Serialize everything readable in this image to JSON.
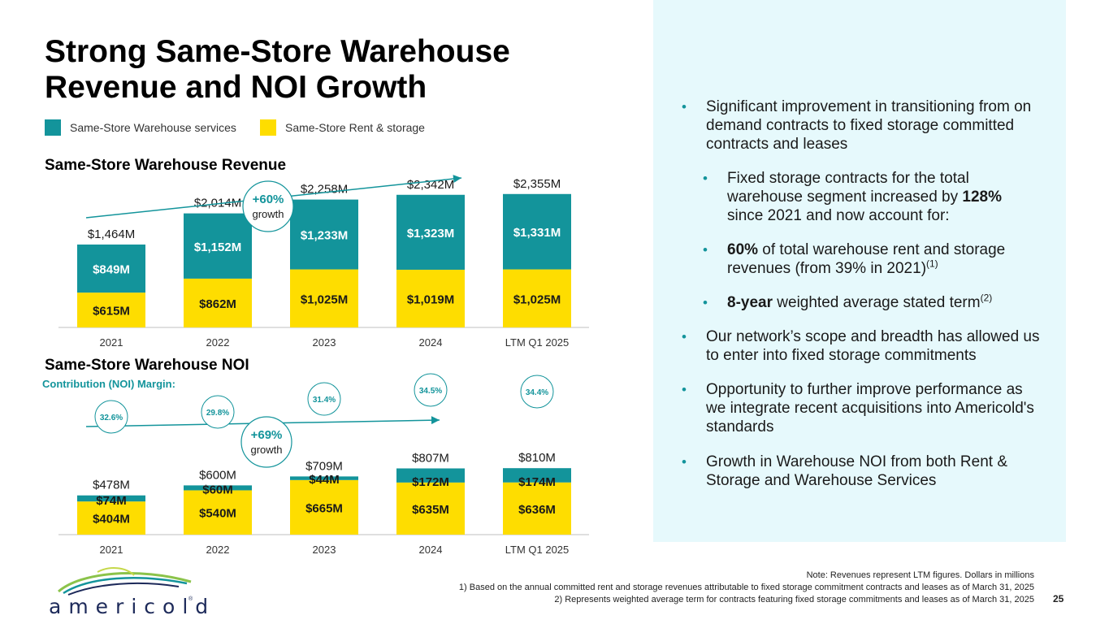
{
  "title": {
    "line1": "Strong Same-Store Warehouse",
    "line2": "Revenue and NOI Growth"
  },
  "legend": {
    "services": "Same-Store Warehouse services",
    "rent": "Same-Store Rent & storage"
  },
  "colors": {
    "teal": "#13949b",
    "yellow": "#fedd00",
    "panel": "#e6f9fc"
  },
  "revenue_title": "Same-Store Warehouse Revenue",
  "noi_title": "Same-Store Warehouse NOI",
  "margin_label": "Contribution (NOI) Margin:",
  "chart_data": [
    {
      "type": "bar",
      "title": "Same-Store Warehouse Revenue",
      "categories": [
        "2021",
        "2022",
        "2023",
        "2024",
        "LTM Q1 2025"
      ],
      "series": [
        {
          "name": "Same-Store Rent & storage",
          "values": [
            615,
            862,
            1025,
            1019,
            1025
          ],
          "labels": [
            "$615M",
            "$862M",
            "$1,025M",
            "$1,019M",
            "$1,025M"
          ]
        },
        {
          "name": "Same-Store Warehouse services",
          "values": [
            849,
            1152,
            1233,
            1323,
            1331
          ],
          "labels": [
            "$849M",
            "$1,152M",
            "$1,233M",
            "$1,323M",
            "$1,331M"
          ]
        }
      ],
      "totals": [
        "$1,464M",
        "$2,014M",
        "$2,258M",
        "$2,342M",
        "$2,355M"
      ],
      "growth": {
        "value": "+60%",
        "text": "growth"
      }
    },
    {
      "type": "bar",
      "title": "Same-Store Warehouse NOI",
      "categories": [
        "2021",
        "2022",
        "2023",
        "2024",
        "LTM Q1 2025"
      ],
      "series": [
        {
          "name": "Same-Store Rent & storage",
          "values": [
            404,
            540,
            665,
            635,
            636
          ],
          "labels": [
            "$404M",
            "$540M",
            "$665M",
            "$635M",
            "$636M"
          ]
        },
        {
          "name": "Same-Store Warehouse services",
          "values": [
            74,
            60,
            44,
            172,
            174
          ],
          "labels": [
            "$74M",
            "$60M",
            "$44M",
            "$172M",
            "$174M"
          ]
        }
      ],
      "totals": [
        "$478M",
        "$600M",
        "$709M",
        "$807M",
        "$810M"
      ],
      "margins": [
        "32.6%",
        "29.8%",
        "31.4%",
        "34.5%",
        "34.4%"
      ],
      "growth": {
        "value": "+69%",
        "text": "growth"
      }
    }
  ],
  "bullets": {
    "b1": "Significant improvement in transitioning from on demand contracts to fixed storage committed contracts and leases",
    "b2_pre": "Fixed storage contracts for the total warehouse segment increased by ",
    "b2_bold": "128%",
    "b2_post": " since 2021 and now account for:",
    "b3_bold": "60%",
    "b3_text": " of total warehouse rent and storage revenues (from 39% in 2021)",
    "b3_sup": "(1)",
    "b4_bold": "8-year",
    "b4_text": " weighted average stated term",
    "b4_sup": "(2)",
    "b5": "Our network’s scope and breadth has allowed us to enter into fixed storage commitments",
    "b6": "Opportunity to further improve performance as we integrate recent acquisitions into Americold's standards",
    "b7": "Growth in Warehouse NOI from both Rent & Storage and Warehouse Services",
    "marker": "•"
  },
  "footnotes": {
    "note": "Note: Revenues represent LTM figures. Dollars in millions",
    "f1": "1) Based on the annual committed rent and storage revenues attributable to fixed storage commitment contracts and leases as of March 31, 2025",
    "f2": "2) Represents weighted average term for contracts featuring fixed storage commitments and leases as of March 31, 2025"
  },
  "page_number": "25",
  "logo": {
    "word": "americold",
    "reg": "®"
  }
}
